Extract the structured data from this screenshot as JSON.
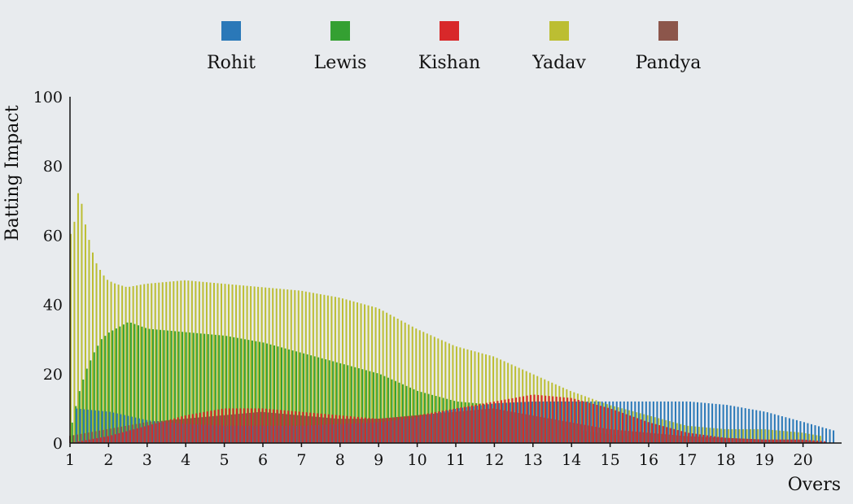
{
  "chart_data": {
    "type": "bar",
    "xlabel": "Overs",
    "ylabel": "Batting Impact",
    "ylim": [
      0,
      100
    ],
    "yticks": [
      0,
      20,
      40,
      60,
      80,
      100
    ],
    "xlim": [
      1,
      21
    ],
    "xticks": [
      1,
      2,
      3,
      4,
      5,
      6,
      7,
      8,
      9,
      10,
      11,
      12,
      13,
      14,
      15,
      16,
      17,
      18,
      19,
      20
    ],
    "legend_position": "top",
    "grid": false,
    "series": [
      {
        "name": "Rohit",
        "color": "#2a78b8",
        "x": [
          1.1,
          2,
          3,
          4,
          5,
          6,
          7,
          8,
          9,
          10,
          11,
          12,
          13,
          14,
          15,
          16,
          17,
          18,
          19,
          20,
          20.8
        ],
        "values": [
          10,
          9,
          6.5,
          5.5,
          5,
          5,
          5,
          5.5,
          6,
          7.5,
          10,
          11.5,
          12,
          12,
          12,
          12,
          12,
          11,
          9,
          6,
          3.5
        ]
      },
      {
        "name": "Lewis",
        "color": "#34a032",
        "x": [
          1,
          1.2,
          1.4,
          1.6,
          1.8,
          2,
          2.5,
          3,
          4,
          5,
          6,
          7,
          8,
          9,
          10,
          11,
          12,
          12.5,
          13,
          14,
          15,
          16,
          17,
          17.5,
          18
        ],
        "values": [
          4,
          14,
          21,
          26,
          30,
          32,
          35,
          33,
          32,
          31,
          29,
          26,
          23,
          20,
          15,
          12,
          11,
          9,
          6,
          4,
          2.5,
          1.5,
          1,
          0.5,
          0
        ]
      },
      {
        "name": "Kishan",
        "color": "#d8282a",
        "x": [
          1,
          2,
          3,
          4,
          5,
          6,
          7,
          8,
          9,
          10,
          11,
          12,
          13,
          14,
          15,
          16,
          17,
          18,
          19,
          20,
          20.6
        ],
        "values": [
          0,
          2,
          5,
          8,
          10,
          10,
          9,
          8,
          7,
          8,
          10,
          12,
          14,
          13,
          10,
          6,
          3,
          1.5,
          1,
          1,
          0.5
        ]
      },
      {
        "name": "Yadav",
        "color": "#bcbe32",
        "x": [
          1,
          1.1,
          1.25,
          1.4,
          1.55,
          1.7,
          1.85,
          2,
          2.2,
          2.5,
          3,
          4,
          5,
          6,
          7,
          8,
          9,
          10,
          11,
          12,
          13,
          14,
          15,
          16,
          17,
          18,
          19,
          20,
          20.5
        ],
        "values": [
          60,
          61,
          74,
          64,
          57,
          52,
          49,
          47,
          46,
          45,
          46,
          47,
          46,
          45,
          44,
          42,
          39,
          33,
          28,
          25,
          20,
          15,
          11,
          8,
          5,
          4,
          4,
          3,
          2
        ]
      },
      {
        "name": "Pandya",
        "color": "#8c564b",
        "x": [
          1,
          2,
          3,
          4,
          5,
          6,
          7,
          8,
          9,
          10,
          11,
          12,
          13,
          14,
          15,
          16,
          17,
          18,
          19,
          20,
          20.6
        ],
        "values": [
          2,
          4,
          6,
          7,
          8,
          9,
          8,
          7,
          7,
          8,
          9,
          10,
          8,
          6,
          4,
          3,
          2,
          1.5,
          1,
          1,
          0
        ]
      }
    ]
  }
}
